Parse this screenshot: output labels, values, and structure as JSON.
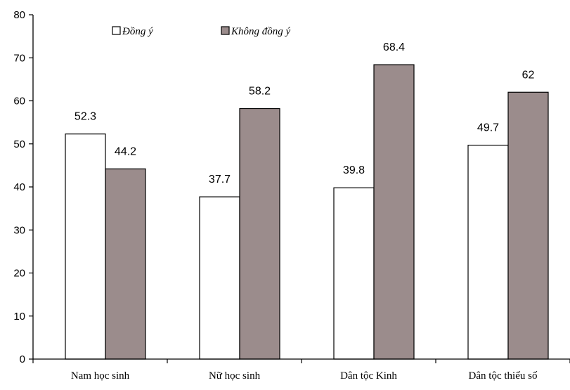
{
  "chart_data": {
    "type": "bar",
    "title": "",
    "xlabel": "",
    "ylabel": "",
    "ylim": [
      0,
      80
    ],
    "yticks": [
      0,
      10,
      20,
      30,
      40,
      50,
      60,
      70,
      80
    ],
    "categories": [
      "Nam học sinh",
      "Nữ học sinh",
      "Dân tộc Kinh",
      "Dân tộc thiểu số"
    ],
    "series": [
      {
        "name": "Đồng ý",
        "values": [
          52.3,
          37.7,
          39.8,
          49.7
        ],
        "color": "#ffffff"
      },
      {
        "name": "Không đồng ý",
        "values": [
          44.2,
          58.2,
          68.4,
          62
        ],
        "color": "#9b8c8c"
      }
    ],
    "data_labels": [
      [
        "52.3",
        "37.7",
        "39.8",
        "49.7"
      ],
      [
        "44.2",
        "58.2",
        "68.4",
        "62"
      ]
    ],
    "legend": {
      "position": "top-left"
    },
    "grid": false
  }
}
